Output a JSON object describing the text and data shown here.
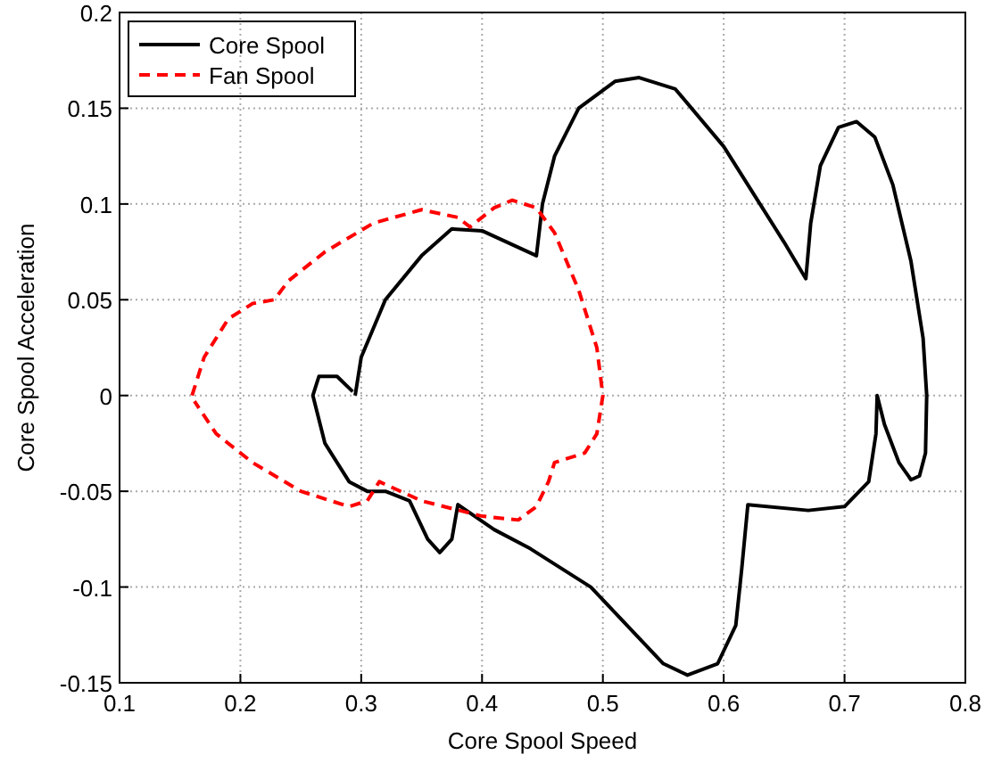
{
  "chart_data": {
    "type": "line",
    "xlabel": "Core Spool Speed",
    "ylabel": "Core Spool Acceleration",
    "xlim": [
      0.1,
      0.8
    ],
    "ylim": [
      -0.15,
      0.2
    ],
    "xticks": [
      0.1,
      0.2,
      0.3,
      0.4,
      0.5,
      0.6,
      0.7,
      0.8
    ],
    "yticks": [
      -0.15,
      -0.1,
      -0.05,
      0,
      0.05,
      0.1,
      0.15,
      0.2
    ],
    "grid": true,
    "legend": "top left",
    "marker": "none",
    "series": [
      {
        "name": "Core Spool",
        "color": "#000000",
        "line_style": "solid",
        "x": [
          0.295,
          0.3,
          0.32,
          0.35,
          0.375,
          0.4,
          0.445,
          0.45,
          0.46,
          0.48,
          0.51,
          0.53,
          0.56,
          0.6,
          0.63,
          0.65,
          0.668,
          0.672,
          0.68,
          0.695,
          0.71,
          0.725,
          0.74,
          0.755,
          0.765,
          0.768,
          0.767,
          0.762,
          0.755,
          0.745,
          0.733,
          0.727,
          0.726,
          0.72,
          0.7,
          0.67,
          0.62,
          0.615,
          0.61,
          0.595,
          0.57,
          0.55,
          0.52,
          0.49,
          0.44,
          0.41,
          0.38,
          0.375,
          0.365,
          0.355,
          0.34,
          0.32,
          0.305,
          0.29,
          0.27,
          0.26,
          0.265,
          0.28,
          0.293
        ],
        "values": [
          0,
          0.02,
          0.05,
          0.073,
          0.087,
          0.086,
          0.073,
          0.1,
          0.125,
          0.15,
          0.164,
          0.166,
          0.16,
          0.13,
          0.1,
          0.08,
          0.061,
          0.09,
          0.12,
          0.14,
          0.143,
          0.135,
          0.11,
          0.07,
          0.03,
          0,
          -0.03,
          -0.042,
          -0.044,
          -0.035,
          -0.015,
          0,
          -0.02,
          -0.045,
          -0.058,
          -0.06,
          -0.057,
          -0.09,
          -0.12,
          -0.14,
          -0.146,
          -0.14,
          -0.12,
          -0.1,
          -0.08,
          -0.07,
          -0.057,
          -0.075,
          -0.082,
          -0.075,
          -0.055,
          -0.05,
          -0.05,
          -0.045,
          -0.025,
          0,
          0.01,
          0.01,
          0.002
        ]
      },
      {
        "name": "Fan Spool",
        "color": "#ff0000",
        "line_style": "dashed",
        "x": [
          0.16,
          0.17,
          0.19,
          0.21,
          0.228,
          0.24,
          0.27,
          0.31,
          0.35,
          0.38,
          0.39,
          0.41,
          0.425,
          0.445,
          0.46,
          0.48,
          0.495,
          0.5,
          0.495,
          0.485,
          0.46,
          0.455,
          0.445,
          0.43,
          0.4,
          0.35,
          0.315,
          0.305,
          0.29,
          0.25,
          0.21,
          0.18,
          0.162
        ],
        "values": [
          0,
          0.02,
          0.04,
          0.048,
          0.05,
          0.06,
          0.075,
          0.09,
          0.097,
          0.093,
          0.088,
          0.098,
          0.102,
          0.098,
          0.085,
          0.055,
          0.025,
          0,
          -0.02,
          -0.03,
          -0.035,
          -0.045,
          -0.058,
          -0.065,
          -0.063,
          -0.055,
          -0.045,
          -0.055,
          -0.058,
          -0.05,
          -0.035,
          -0.02,
          -0.003
        ]
      }
    ]
  }
}
